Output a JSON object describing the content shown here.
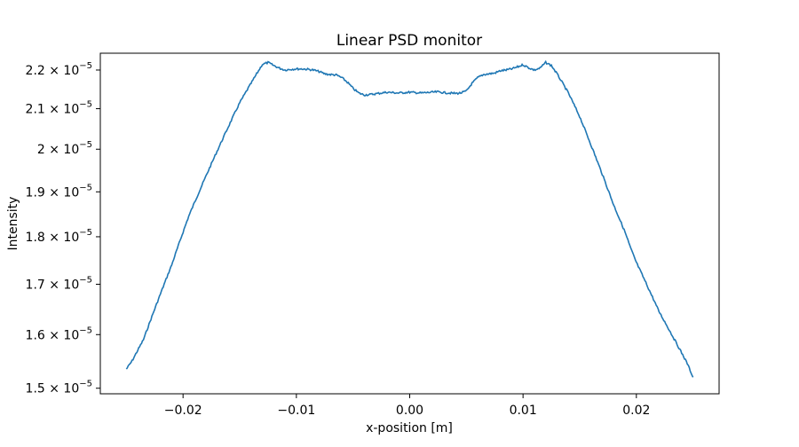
{
  "chart_data": {
    "type": "line",
    "title": "Linear PSD monitor",
    "xlabel": "x-position [m]",
    "ylabel": "Intensity",
    "xlim": [
      -0.0273,
      0.0273
    ],
    "ylim": [
      1.49e-05,
      2.245e-05
    ],
    "yscale": "log",
    "grid": false,
    "line_color": "#1f77b4",
    "x_ticks": [
      {
        "value": -0.02,
        "label": "−0.02"
      },
      {
        "value": -0.01,
        "label": "−0.01"
      },
      {
        "value": 0.0,
        "label": "0.00"
      },
      {
        "value": 0.01,
        "label": "0.01"
      },
      {
        "value": 0.02,
        "label": "0.02"
      }
    ],
    "y_ticks": [
      {
        "value": 1.5e-05,
        "mantissa": "1.5",
        "exp": "−5"
      },
      {
        "value": 1.6e-05,
        "mantissa": "1.6",
        "exp": "−5"
      },
      {
        "value": 1.7e-05,
        "mantissa": "1.7",
        "exp": "−5"
      },
      {
        "value": 1.8e-05,
        "mantissa": "1.8",
        "exp": "−5"
      },
      {
        "value": 1.9e-05,
        "mantissa": "1.9",
        "exp": "−5"
      },
      {
        "value": 2e-05,
        "mantissa": "2",
        "exp": "−5"
      },
      {
        "value": 2.1e-05,
        "mantissa": "2.1",
        "exp": "−5"
      },
      {
        "value": 2.2e-05,
        "mantissa": "2.2",
        "exp": "−5"
      }
    ],
    "series": [
      {
        "x": [
          -0.025,
          -0.0245,
          -0.024,
          -0.0235,
          -0.023,
          -0.0225,
          -0.022,
          -0.0215,
          -0.021,
          -0.0205,
          -0.02,
          -0.0195,
          -0.019,
          -0.0185,
          -0.018,
          -0.0175,
          -0.017,
          -0.0165,
          -0.016,
          -0.0155,
          -0.015,
          -0.0145,
          -0.014,
          -0.0135,
          -0.013,
          -0.0125,
          -0.012,
          -0.0115,
          -0.011,
          -0.0105,
          -0.01,
          -0.0095,
          -0.009,
          -0.0085,
          -0.008,
          -0.0075,
          -0.007,
          -0.0065,
          -0.006,
          -0.0055,
          -0.005,
          -0.0045,
          -0.004,
          -0.0035,
          -0.003,
          -0.0025,
          -0.002,
          -0.0015,
          -0.001,
          -0.0005,
          0.0,
          0.0005,
          0.001,
          0.0015,
          0.002,
          0.0025,
          0.003,
          0.0035,
          0.004,
          0.0045,
          0.005,
          0.0055,
          0.006,
          0.0065,
          0.007,
          0.0075,
          0.008,
          0.0085,
          0.009,
          0.0095,
          0.01,
          0.0105,
          0.011,
          0.0115,
          0.012,
          0.0125,
          0.013,
          0.0135,
          0.014,
          0.0145,
          0.015,
          0.0155,
          0.016,
          0.0165,
          0.017,
          0.0175,
          0.018,
          0.0185,
          0.019,
          0.0195,
          0.02,
          0.0205,
          0.021,
          0.0215,
          0.022,
          0.0225,
          0.023,
          0.0235,
          0.024,
          0.0245,
          0.025
        ],
        "y": [
          1.535e-05,
          1.55e-05,
          1.57e-05,
          1.59e-05,
          1.62e-05,
          1.65e-05,
          1.68e-05,
          1.71e-05,
          1.74e-05,
          1.775e-05,
          1.81e-05,
          1.845e-05,
          1.875e-05,
          1.905e-05,
          1.935e-05,
          1.965e-05,
          1.995e-05,
          2.025e-05,
          2.055e-05,
          2.085e-05,
          2.115e-05,
          2.14e-05,
          2.165e-05,
          2.19e-05,
          2.215e-05,
          2.22e-05,
          2.212e-05,
          2.205e-05,
          2.2e-05,
          2.202e-05,
          2.203e-05,
          2.203e-05,
          2.202e-05,
          2.2e-05,
          2.196e-05,
          2.19e-05,
          2.188e-05,
          2.187e-05,
          2.18e-05,
          2.168e-05,
          2.152e-05,
          2.14e-05,
          2.135e-05,
          2.136e-05,
          2.138e-05,
          2.14e-05,
          2.142e-05,
          2.141e-05,
          2.14e-05,
          2.141e-05,
          2.142e-05,
          2.141e-05,
          2.14e-05,
          2.141e-05,
          2.142e-05,
          2.143e-05,
          2.141e-05,
          2.14e-05,
          2.139e-05,
          2.14e-05,
          2.145e-05,
          2.165e-05,
          2.18e-05,
          2.188e-05,
          2.19e-05,
          2.192e-05,
          2.198e-05,
          2.2e-05,
          2.203e-05,
          2.208e-05,
          2.214e-05,
          2.206e-05,
          2.2e-05,
          2.205e-05,
          2.22e-05,
          2.212e-05,
          2.19e-05,
          2.165e-05,
          2.14e-05,
          2.11e-05,
          2.08e-05,
          2.045e-05,
          2.01e-05,
          1.975e-05,
          1.94e-05,
          1.905e-05,
          1.87e-05,
          1.84e-05,
          1.81e-05,
          1.775e-05,
          1.745e-05,
          1.72e-05,
          1.695e-05,
          1.67e-05,
          1.645e-05,
          1.625e-05,
          1.605e-05,
          1.585e-05,
          1.565e-05,
          1.545e-05,
          1.52e-05
        ]
      }
    ]
  }
}
